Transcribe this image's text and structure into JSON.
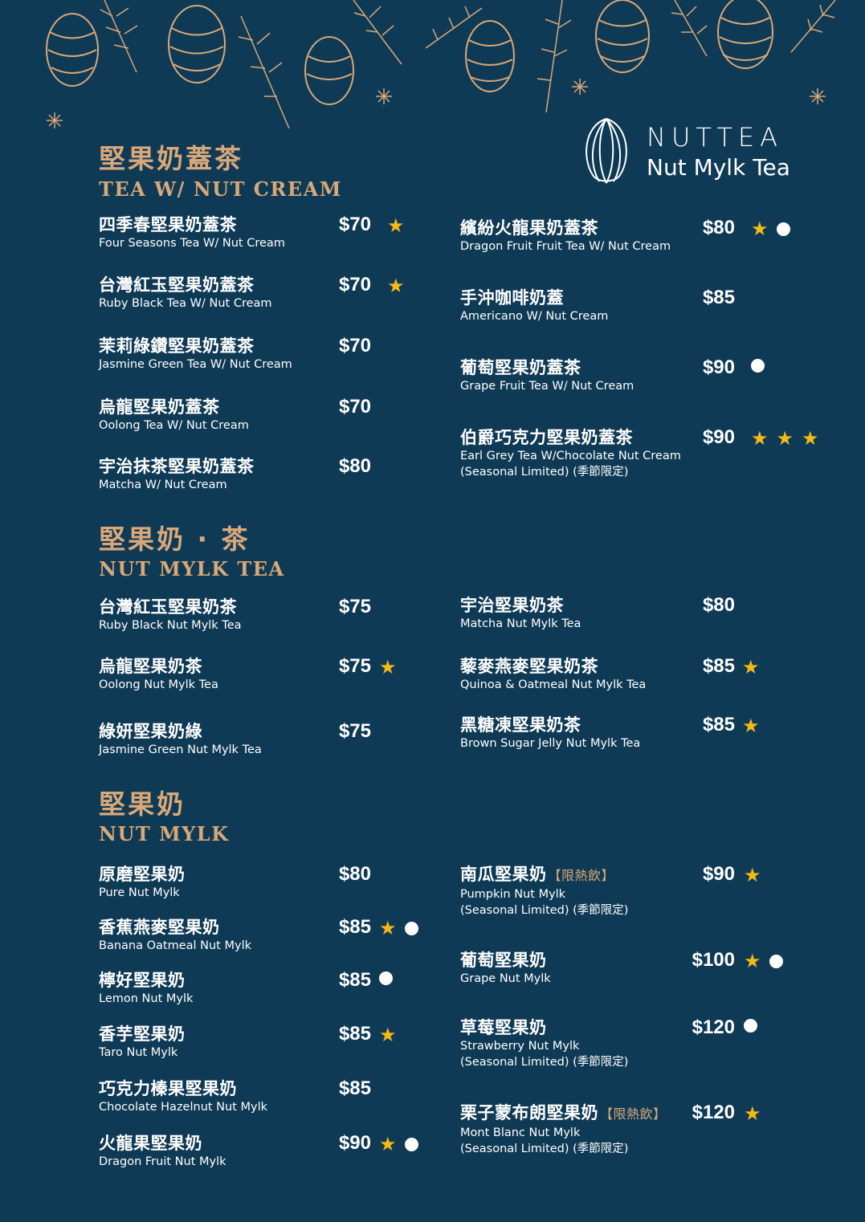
{
  "brand": {
    "name": "NUTTEA",
    "tagline": "Nut Mylk Tea",
    "logo_icon": "nut-outline-icon"
  },
  "colors": {
    "background": "#0f3a55",
    "accent_gold": "#d9a878",
    "star": "#f5b915",
    "dot": "#ffffff"
  },
  "legend_icons": {
    "star": "star-icon",
    "dot": "dot-icon"
  },
  "sections": [
    {
      "title_zh": "堅果奶蓋茶",
      "title_en": "TEA W/ NUT CREAM",
      "items": [
        {
          "zh": "四季春堅果奶蓋茶",
          "en": "Four Seasons Tea W/ Nut Cream",
          "price": "$70",
          "marks": [
            "star"
          ]
        },
        {
          "zh": "台灣紅玉堅果奶蓋茶",
          "en": "Ruby Black Tea W/ Nut Cream",
          "price": "$70",
          "marks": [
            "star"
          ]
        },
        {
          "zh": "茉莉綠鑽堅果奶蓋茶",
          "en": "Jasmine Green Tea W/ Nut Cream",
          "price": "$70",
          "marks": []
        },
        {
          "zh": "烏龍堅果奶蓋茶",
          "en": "Oolong Tea W/ Nut Cream",
          "price": "$70",
          "marks": []
        },
        {
          "zh": "宇治抹茶堅果奶蓋茶",
          "en": "Matcha W/ Nut Cream",
          "price": "$80",
          "marks": []
        },
        {
          "zh": "繽紛火龍果奶蓋茶",
          "en": "Dragon Fruit Fruit Tea W/ Nut Cream",
          "price": "$80",
          "marks": [
            "star",
            "dot"
          ]
        },
        {
          "zh": "手沖咖啡奶蓋",
          "en": "Americano W/ Nut Cream",
          "price": "$85",
          "marks": []
        },
        {
          "zh": "葡萄堅果奶蓋茶",
          "en": "Grape Fruit Tea W/ Nut Cream",
          "price": "$90",
          "marks": [
            "dot"
          ]
        },
        {
          "zh": "伯爵巧克力堅果奶蓋茶",
          "en": "Earl Grey Tea W/Chocolate Nut Cream",
          "note": "(Seasonal Limited) (季節限定)",
          "price": "$90",
          "marks": [
            "star",
            "star",
            "star"
          ]
        }
      ]
    },
    {
      "title_zh": "堅果奶 · 茶",
      "title_en": "NUT MYLK TEA",
      "items": [
        {
          "zh": "台灣紅玉堅果奶茶",
          "en": "Ruby Black Nut Mylk Tea",
          "price": "$75",
          "marks": []
        },
        {
          "zh": "烏龍堅果奶茶",
          "en": "Oolong Nut Mylk Tea",
          "price": "$75",
          "marks": [
            "star"
          ]
        },
        {
          "zh": "綠妍堅果奶綠",
          "en": "Jasmine Green Nut Mylk Tea",
          "price": "$75",
          "marks": []
        },
        {
          "zh": "宇治堅果奶茶",
          "en": "Matcha Nut Mylk Tea",
          "price": "$80",
          "marks": []
        },
        {
          "zh": "藜麥燕麥堅果奶茶",
          "en": "Quinoa & Oatmeal Nut Mylk Tea",
          "price": "$85",
          "marks": [
            "star"
          ]
        },
        {
          "zh": "黑糖凍堅果奶茶",
          "en": "Brown Sugar Jelly Nut Mylk Tea",
          "price": "$85",
          "marks": [
            "star"
          ]
        }
      ]
    },
    {
      "title_zh": "堅果奶",
      "title_en": "NUT MYLK",
      "items": [
        {
          "zh": "原磨堅果奶",
          "en": "Pure Nut Mylk",
          "price": "$80",
          "marks": []
        },
        {
          "zh": "香蕉燕麥堅果奶",
          "en": "Banana Oatmeal Nut Mylk",
          "price": "$85",
          "marks": [
            "star",
            "dot"
          ]
        },
        {
          "zh": "檸好堅果奶",
          "en": "Lemon Nut Mylk",
          "price": "$85",
          "marks": [
            "dot"
          ]
        },
        {
          "zh": "香芋堅果奶",
          "en": "Taro Nut Mylk",
          "price": "$85",
          "marks": [
            "star"
          ]
        },
        {
          "zh": "巧克力榛果堅果奶",
          "en": "Chocolate Hazelnut Nut Mylk",
          "price": "$85",
          "marks": []
        },
        {
          "zh": "火龍果堅果奶",
          "en": "Dragon Fruit Nut Mylk",
          "price": "$90",
          "marks": [
            "star",
            "dot"
          ]
        },
        {
          "zh": "南瓜堅果奶",
          "tag": "【限熱飲】",
          "en": "Pumpkin Nut Mylk",
          "note": "(Seasonal Limited) (季節限定)",
          "price": "$90",
          "marks": [
            "star"
          ]
        },
        {
          "zh": "葡萄堅果奶",
          "en": "Grape Nut Mylk",
          "price": "$100",
          "marks": [
            "star",
            "dot"
          ]
        },
        {
          "zh": "草莓堅果奶",
          "en": "Strawberry Nut Mylk",
          "note": "(Seasonal Limited) (季節限定)",
          "price": "$120",
          "marks": [
            "dot"
          ]
        },
        {
          "zh": "栗子蒙布朗堅果奶",
          "tag": "【限熱飲】",
          "en": "Mont Blanc Nut Mylk",
          "note": "(Seasonal Limited) (季節限定)",
          "price": "$120",
          "marks": [
            "star"
          ]
        }
      ]
    }
  ]
}
